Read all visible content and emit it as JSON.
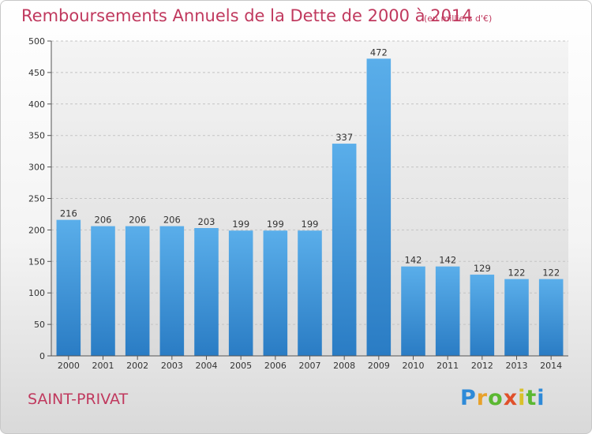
{
  "title": "Remboursements Annuels de la Dette de 2000 à 2014",
  "subtitle": "(en milliers d'€)",
  "place": "SAINT-PRIVAT",
  "logo": {
    "letters": [
      "P",
      "r",
      "o",
      "x",
      "i",
      "t",
      "i"
    ],
    "colors": [
      "#2e8ad8",
      "#e8a12a",
      "#5bb832",
      "#e0502a",
      "#d9c12a",
      "#5bb832",
      "#2e8ad8"
    ]
  },
  "chart_data": {
    "type": "bar",
    "title": "Remboursements Annuels de la Dette de 2000 à 2014",
    "categories": [
      "2000",
      "2001",
      "2002",
      "2003",
      "2004",
      "2005",
      "2006",
      "2007",
      "2008",
      "2009",
      "2010",
      "2011",
      "2012",
      "2013",
      "2014"
    ],
    "values": [
      216,
      206,
      206,
      206,
      203,
      199,
      199,
      199,
      337,
      472,
      142,
      142,
      129,
      122,
      122
    ],
    "ylim": [
      0,
      500
    ],
    "yticks": [
      0,
      50,
      100,
      150,
      200,
      250,
      300,
      350,
      400,
      450,
      500
    ],
    "xlabel": "",
    "ylabel": "",
    "grid": true,
    "bar_color": "#4a9ee0"
  }
}
